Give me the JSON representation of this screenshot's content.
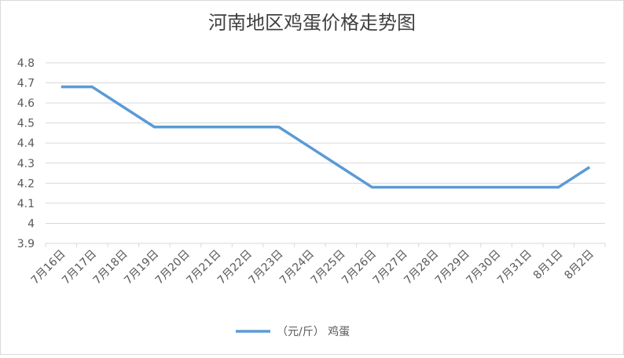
{
  "chart_data": {
    "type": "line",
    "title": "河南地区鸡蛋价格走势图",
    "categories": [
      "7月16日",
      "7月17日",
      "7月18日",
      "7月19日",
      "7月20日",
      "7月21日",
      "7月22日",
      "7月23日",
      "7月24日",
      "7月25日",
      "7月26日",
      "7月27日",
      "7月28日",
      "7月29日",
      "7月30日",
      "7月31日",
      "8月1日",
      "8月2日"
    ],
    "series": [
      {
        "name": "（元/斤） 鸡蛋",
        "color": "#5b9bd5",
        "values": [
          4.68,
          4.68,
          4.58,
          4.48,
          4.48,
          4.48,
          4.48,
          4.48,
          4.38,
          4.28,
          4.18,
          4.18,
          4.18,
          4.18,
          4.18,
          4.18,
          4.18,
          4.28
        ]
      }
    ],
    "ylim": [
      3.9,
      4.8
    ],
    "yticks": [
      3.9,
      4,
      4.1,
      4.2,
      4.3,
      4.4,
      4.5,
      4.6,
      4.7,
      4.8
    ],
    "grid": true,
    "legend": "bottom"
  }
}
